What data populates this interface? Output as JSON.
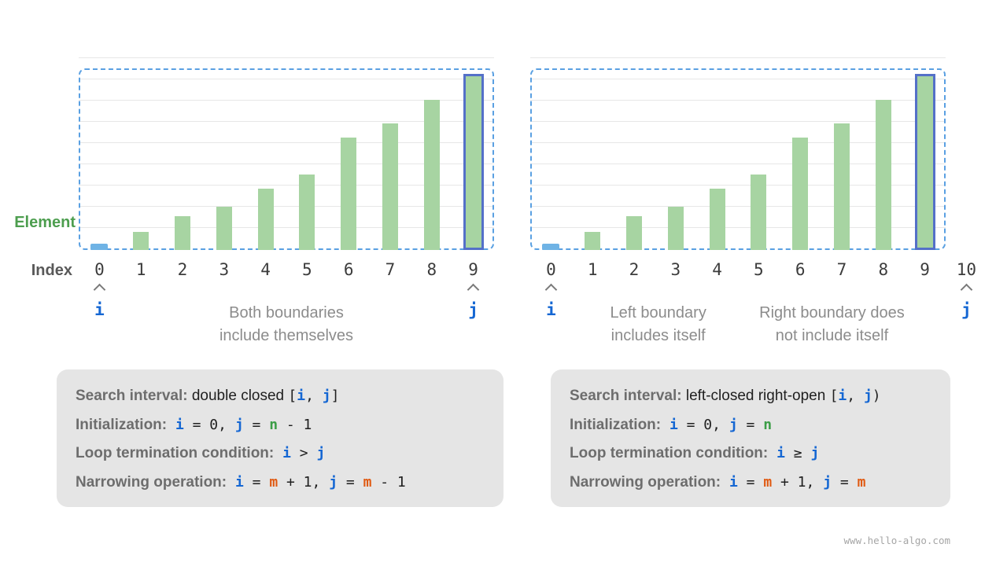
{
  "watermark": "www.hello-algo.com",
  "axis": {
    "element_label": "Element",
    "index_label": "Index"
  },
  "colors": {
    "bar": "#a7d4a2",
    "first_bar": "#6fb3e5",
    "highlight_border": "#5470c8",
    "dashed_border": "#5aa0e2",
    "var_i_j": "#1567d3",
    "var_m": "#e05a12",
    "var_n": "#3c9e47"
  },
  "chart_data": [
    {
      "type": "bar",
      "name": "double-closed-interval",
      "categories": [
        "0",
        "1",
        "2",
        "3",
        "4",
        "5",
        "6",
        "7",
        "8",
        "9"
      ],
      "values": [
        8,
        23,
        43,
        55,
        78,
        96,
        143,
        161,
        191,
        218
      ],
      "value_unit": "relative element height (px of 218 max)",
      "first_bar_special": true,
      "highlight_index": 9,
      "pointers": [
        {
          "index": 0,
          "label": "i"
        },
        {
          "index": 9,
          "label": "j"
        }
      ],
      "captions": [
        {
          "lines": [
            "Both boundaries",
            "include themselves"
          ],
          "center_pct": 50
        }
      ]
    },
    {
      "type": "bar",
      "name": "left-closed-right-open-interval",
      "categories": [
        "0",
        "1",
        "2",
        "3",
        "4",
        "5",
        "6",
        "7",
        "8",
        "9",
        "10"
      ],
      "values": [
        8,
        23,
        43,
        55,
        78,
        96,
        143,
        161,
        191,
        218,
        null
      ],
      "value_unit": "relative element height (px of 218 max)",
      "first_bar_special": true,
      "highlight_index": 9,
      "pointers": [
        {
          "index": 0,
          "label": "i"
        },
        {
          "index": 10,
          "label": "j"
        }
      ],
      "captions": [
        {
          "lines": [
            "Left boundary",
            "includes itself"
          ],
          "center_pct": 28
        },
        {
          "lines": [
            "Right boundary does",
            "not include itself"
          ],
          "center_pct": 66
        }
      ]
    }
  ],
  "boxes": [
    {
      "name": "double-closed-rules",
      "lines": [
        [
          [
            "label",
            "Search interval:"
          ],
          [
            "text",
            " double closed "
          ],
          [
            "code",
            "["
          ],
          [
            "i",
            "i"
          ],
          [
            "code",
            ", "
          ],
          [
            "j",
            "j"
          ],
          [
            "code",
            "]"
          ]
        ],
        [
          [
            "label",
            "Initialization:"
          ],
          [
            "code",
            " "
          ],
          [
            "i",
            "i"
          ],
          [
            "code",
            " = 0, "
          ],
          [
            "j",
            "j"
          ],
          [
            "code",
            " = "
          ],
          [
            "n",
            "n"
          ],
          [
            "code",
            " - 1"
          ]
        ],
        [
          [
            "label",
            "Loop termination condition:"
          ],
          [
            "code",
            " "
          ],
          [
            "i",
            "i"
          ],
          [
            "code",
            " > "
          ],
          [
            "j",
            "j"
          ]
        ],
        [
          [
            "label",
            "Narrowing operation:"
          ],
          [
            "code",
            " "
          ],
          [
            "i",
            "i"
          ],
          [
            "code",
            " = "
          ],
          [
            "m",
            "m"
          ],
          [
            "code",
            " + 1, "
          ],
          [
            "j",
            "j"
          ],
          [
            "code",
            " = "
          ],
          [
            "m",
            "m"
          ],
          [
            "code",
            " - 1"
          ]
        ]
      ]
    },
    {
      "name": "left-closed-right-open-rules",
      "lines": [
        [
          [
            "label",
            "Search interval:"
          ],
          [
            "text",
            " left-closed right-open "
          ],
          [
            "code",
            "["
          ],
          [
            "i",
            "i"
          ],
          [
            "code",
            ", "
          ],
          [
            "j",
            "j"
          ],
          [
            "code",
            ")"
          ]
        ],
        [
          [
            "label",
            "Initialization:"
          ],
          [
            "code",
            " "
          ],
          [
            "i",
            "i"
          ],
          [
            "code",
            " = 0, "
          ],
          [
            "j",
            "j"
          ],
          [
            "code",
            " = "
          ],
          [
            "n",
            "n"
          ]
        ],
        [
          [
            "label",
            "Loop termination condition:"
          ],
          [
            "code",
            " "
          ],
          [
            "i",
            "i"
          ],
          [
            "code",
            " ≥ "
          ],
          [
            "j",
            "j"
          ]
        ],
        [
          [
            "label",
            "Narrowing operation:"
          ],
          [
            "code",
            " "
          ],
          [
            "i",
            "i"
          ],
          [
            "code",
            " = "
          ],
          [
            "m",
            "m"
          ],
          [
            "code",
            " + 1, "
          ],
          [
            "j",
            "j"
          ],
          [
            "code",
            " = "
          ],
          [
            "m",
            "m"
          ]
        ]
      ]
    }
  ]
}
